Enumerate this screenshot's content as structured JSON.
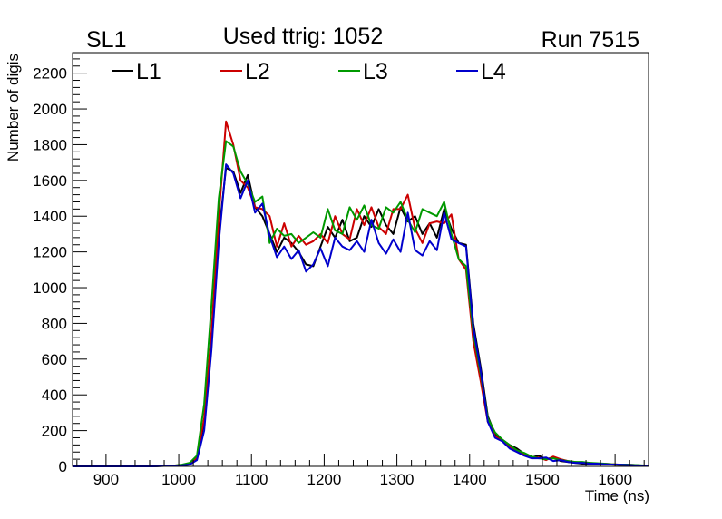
{
  "chart_data": {
    "type": "line",
    "title": "Used ttrig: 1052",
    "left_label": "SL1",
    "right_label": "Run 7515",
    "xlabel": "Time (ns)",
    "ylabel": "Number of digis",
    "xlim": [
      854,
      1646
    ],
    "ylim": [
      0,
      2315
    ],
    "x_ticks": [
      900,
      1000,
      1100,
      1200,
      1300,
      1400,
      1500,
      1600
    ],
    "y_ticks": [
      0,
      200,
      400,
      600,
      800,
      1000,
      1200,
      1400,
      1600,
      1800,
      2000,
      2200
    ],
    "grid": false,
    "legend_placement": "top-left, horizontal",
    "x_start": 855,
    "bin_width": 10,
    "series": [
      {
        "name": "L1",
        "color": "#000000",
        "values": [
          0,
          0,
          0,
          0,
          0,
          0,
          0,
          0,
          0,
          0,
          0,
          0,
          2,
          3,
          3,
          5,
          10,
          40,
          250,
          700,
          1300,
          1670,
          1650,
          1530,
          1630,
          1450,
          1400,
          1300,
          1200,
          1280,
          1250,
          1200,
          1130,
          1120,
          1230,
          1340,
          1280,
          1380,
          1260,
          1280,
          1400,
          1340,
          1440,
          1350,
          1300,
          1450,
          1370,
          1400,
          1300,
          1360,
          1280,
          1440,
          1330,
          1250,
          1240,
          800,
          560,
          280,
          180,
          150,
          120,
          100,
          70,
          50,
          60,
          40,
          50,
          30,
          25,
          20,
          15,
          15,
          10,
          10,
          10,
          8,
          8,
          5,
          5,
          3
        ]
      },
      {
        "name": "L2",
        "color": "#cc0000",
        "values": [
          0,
          0,
          0,
          0,
          0,
          0,
          0,
          0,
          0,
          0,
          0,
          0,
          3,
          3,
          5,
          8,
          15,
          50,
          270,
          750,
          1400,
          1930,
          1800,
          1600,
          1560,
          1450,
          1440,
          1400,
          1230,
          1360,
          1230,
          1290,
          1240,
          1260,
          1300,
          1250,
          1400,
          1300,
          1270,
          1440,
          1350,
          1450,
          1340,
          1300,
          1440,
          1440,
          1520,
          1330,
          1250,
          1360,
          1370,
          1360,
          1410,
          1160,
          1100,
          700,
          480,
          250,
          170,
          140,
          110,
          90,
          70,
          50,
          50,
          35,
          55,
          40,
          30,
          25,
          20,
          20,
          15,
          15,
          12,
          10,
          10,
          8,
          5,
          5
        ]
      },
      {
        "name": "L3",
        "color": "#009900",
        "values": [
          0,
          0,
          0,
          0,
          0,
          0,
          0,
          0,
          0,
          0,
          0,
          0,
          3,
          3,
          5,
          10,
          20,
          60,
          350,
          900,
          1500,
          1820,
          1790,
          1650,
          1580,
          1480,
          1510,
          1250,
          1330,
          1290,
          1300,
          1250,
          1280,
          1310,
          1280,
          1440,
          1320,
          1300,
          1450,
          1380,
          1460,
          1350,
          1330,
          1450,
          1420,
          1480,
          1380,
          1310,
          1440,
          1420,
          1400,
          1480,
          1300,
          1160,
          1120,
          750,
          520,
          270,
          190,
          150,
          120,
          90,
          75,
          55,
          45,
          40,
          45,
          35,
          30,
          25,
          25,
          20,
          18,
          15,
          12,
          10,
          10,
          8,
          6,
          4
        ]
      },
      {
        "name": "L4",
        "color": "#0000cc",
        "values": [
          0,
          0,
          0,
          0,
          0,
          0,
          0,
          0,
          0,
          0,
          0,
          0,
          2,
          3,
          4,
          6,
          10,
          35,
          200,
          650,
          1250,
          1690,
          1640,
          1500,
          1600,
          1420,
          1470,
          1290,
          1170,
          1230,
          1160,
          1210,
          1090,
          1130,
          1220,
          1120,
          1280,
          1230,
          1210,
          1260,
          1200,
          1380,
          1250,
          1190,
          1270,
          1200,
          1420,
          1210,
          1180,
          1260,
          1210,
          1420,
          1270,
          1250,
          1230,
          780,
          540,
          250,
          160,
          140,
          100,
          80,
          60,
          45,
          45,
          50,
          30,
          35,
          25,
          20,
          20,
          15,
          15,
          12,
          10,
          10,
          8,
          6,
          5,
          3
        ]
      }
    ]
  }
}
